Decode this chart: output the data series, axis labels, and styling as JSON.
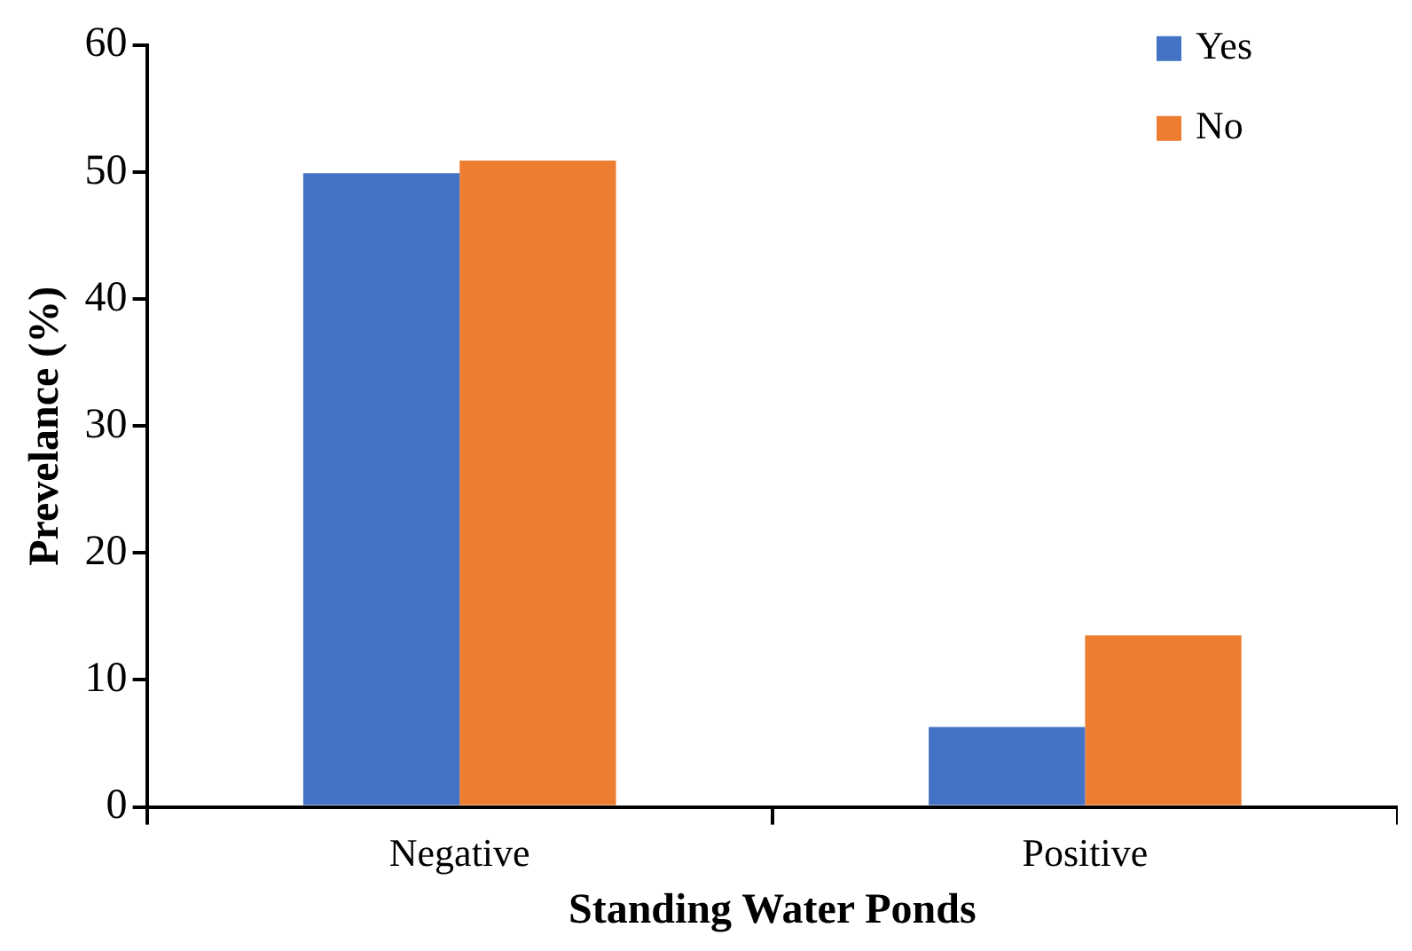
{
  "chart_data": {
    "type": "bar",
    "xlabel": "Standing Water Ponds",
    "ylabel": "Prevelance (%)",
    "categories": [
      "Negative",
      "Positive"
    ],
    "series": [
      {
        "name": "Yes",
        "color": "#4472c4",
        "values": [
          49.9,
          6.3
        ]
      },
      {
        "name": "No",
        "color": "#ed7d31",
        "values": [
          50.9,
          13.5
        ]
      }
    ],
    "ylim": [
      0,
      60
    ],
    "yticks": [
      0,
      10,
      20,
      30,
      40,
      50,
      60
    ],
    "grid": false,
    "legend": "top right"
  }
}
